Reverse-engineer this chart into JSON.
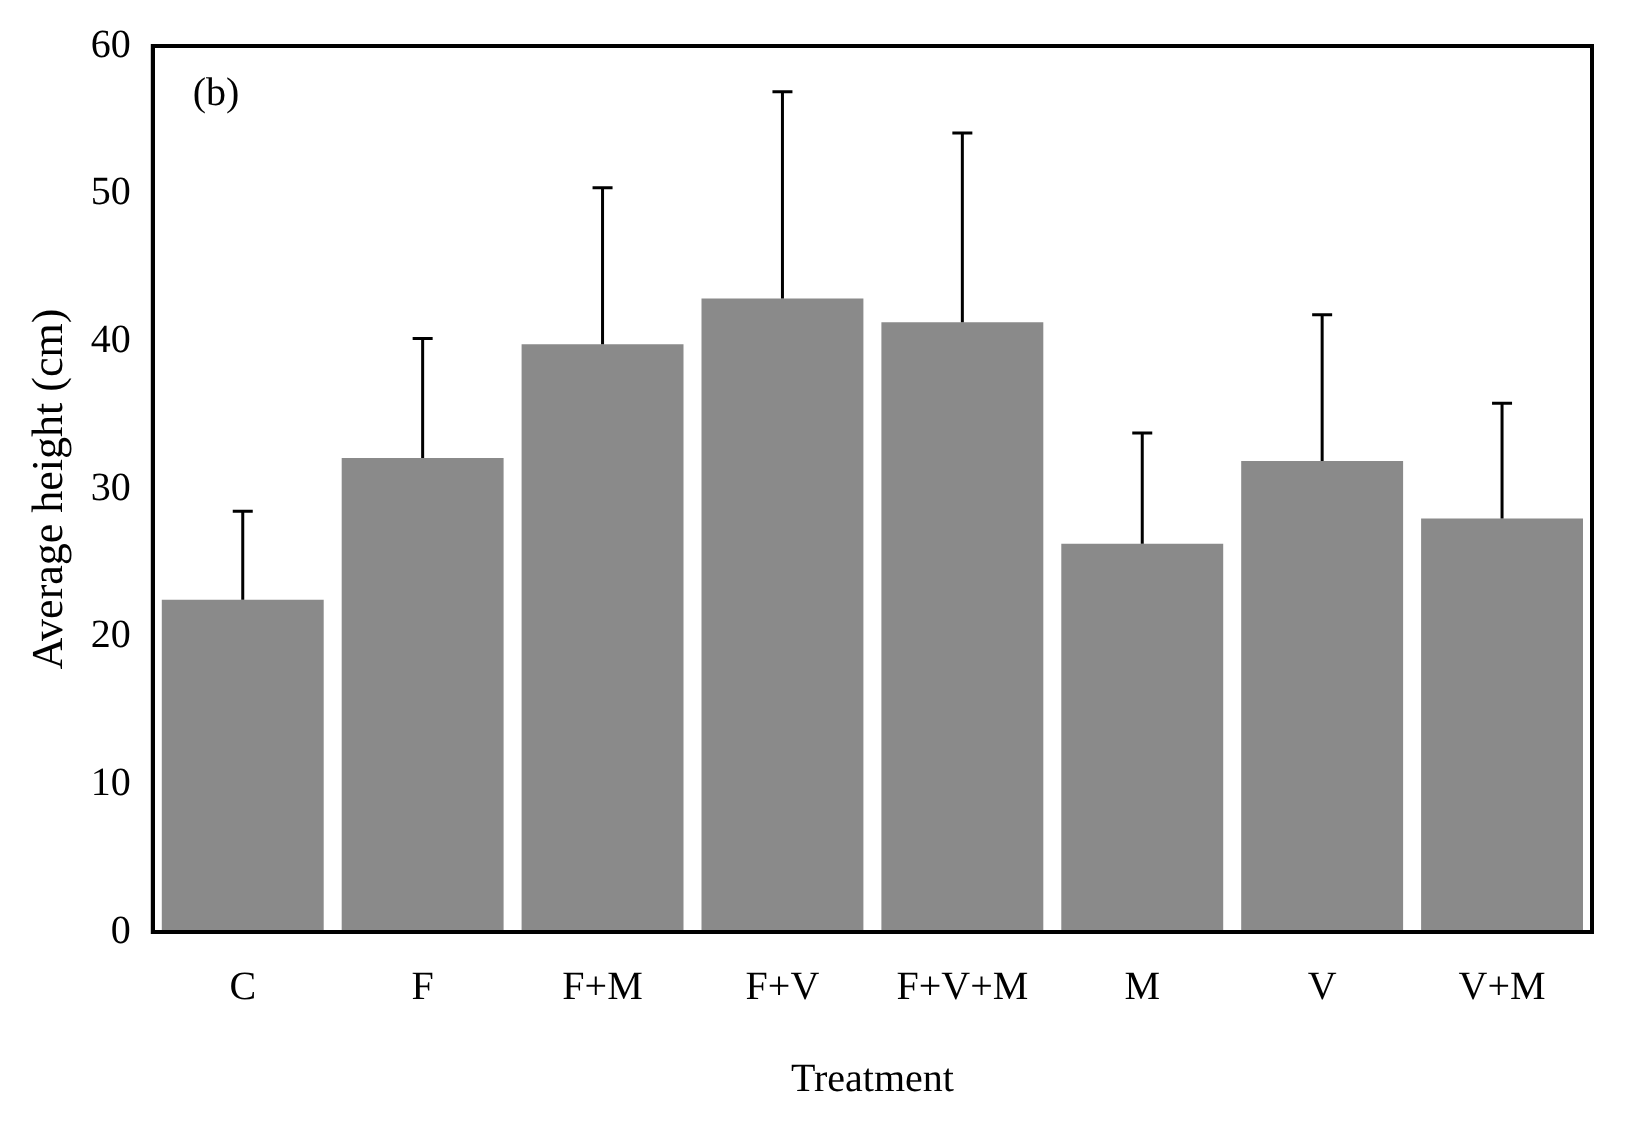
{
  "chart_data": {
    "type": "bar",
    "xlabel": "Treatment",
    "ylabel": "Average height (cm)",
    "annotations": [
      "(b)"
    ],
    "categories": [
      "C",
      "F",
      "F+M",
      "F+V",
      "F+V+M",
      "M",
      "V",
      "V+M"
    ],
    "values": [
      22.5,
      32.1,
      39.8,
      42.9,
      41.3,
      26.3,
      31.9,
      28.0
    ],
    "errors": [
      [
        22.5,
        28.5
      ],
      [
        32.1,
        40.2
      ],
      [
        39.8,
        50.4
      ],
      [
        42.9,
        56.9
      ],
      [
        41.3,
        54.1
      ],
      [
        26.3,
        33.8
      ],
      [
        31.9,
        41.8
      ],
      [
        28.0,
        35.8
      ]
    ],
    "color": "#8a8a8a",
    "ylim": [
      0,
      60
    ],
    "yticks": [
      0,
      10,
      20,
      30,
      40,
      50,
      60
    ],
    "grid": false,
    "legend": false
  }
}
